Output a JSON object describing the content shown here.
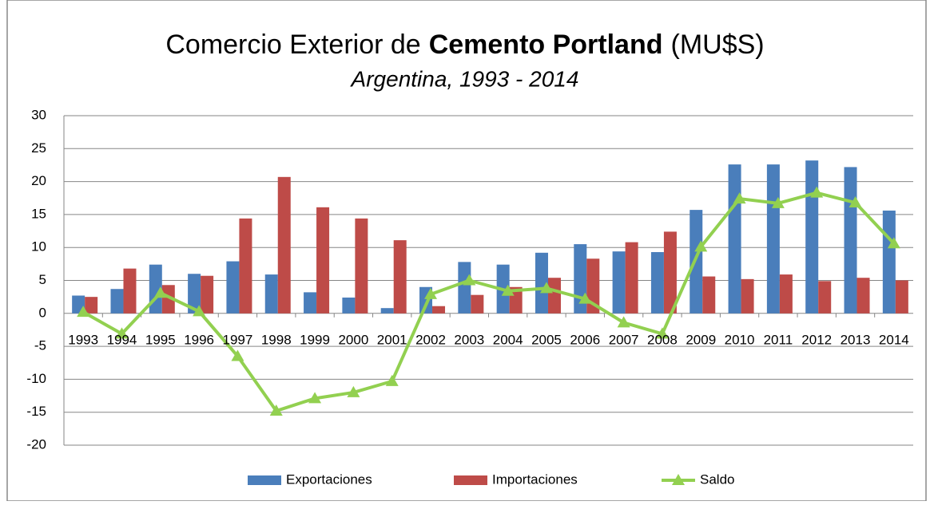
{
  "chart_data": {
    "type": "bar",
    "title": [
      "Comercio Exterior de",
      "Cemento Portland",
      "(MU$S)"
    ],
    "subtitle": "Argentina, 1993 - 2014",
    "categories": [
      "1993",
      "1994",
      "1995",
      "1996",
      "1997",
      "1998",
      "1999",
      "2000",
      "2001",
      "2002",
      "2003",
      "2004",
      "2005",
      "2006",
      "2007",
      "2008",
      "2009",
      "2010",
      "2011",
      "2012",
      "2013",
      "2014"
    ],
    "series": [
      {
        "name": "Exportaciones",
        "type": "bar",
        "color": "#4a7ebb",
        "values": [
          2.7,
          3.7,
          7.4,
          6.0,
          7.9,
          5.9,
          3.2,
          2.4,
          0.8,
          4.0,
          7.8,
          7.4,
          9.2,
          10.5,
          9.4,
          9.3,
          15.7,
          22.6,
          22.6,
          23.2,
          22.2,
          15.6
        ]
      },
      {
        "name": "Importaciones",
        "type": "bar",
        "color": "#be4b48",
        "values": [
          2.5,
          6.8,
          4.3,
          5.7,
          14.4,
          20.7,
          16.1,
          14.4,
          11.1,
          1.1,
          2.8,
          4.0,
          5.4,
          8.3,
          10.8,
          12.4,
          5.6,
          5.2,
          5.9,
          4.9,
          5.4,
          5.0
        ]
      },
      {
        "name": "Saldo",
        "type": "line",
        "color": "#92d050",
        "values": [
          0.2,
          -3.1,
          3.1,
          0.3,
          -6.5,
          -14.8,
          -12.9,
          -12.0,
          -10.3,
          2.9,
          5.0,
          3.4,
          3.8,
          2.2,
          -1.4,
          -3.1,
          10.1,
          17.4,
          16.7,
          18.3,
          16.8,
          10.6
        ]
      }
    ],
    "ylim": [
      -20,
      30
    ],
    "yticks": [
      -20,
      -15,
      -10,
      -5,
      0,
      5,
      10,
      15,
      20,
      25,
      30
    ],
    "grid": true,
    "legend": "bottom"
  }
}
